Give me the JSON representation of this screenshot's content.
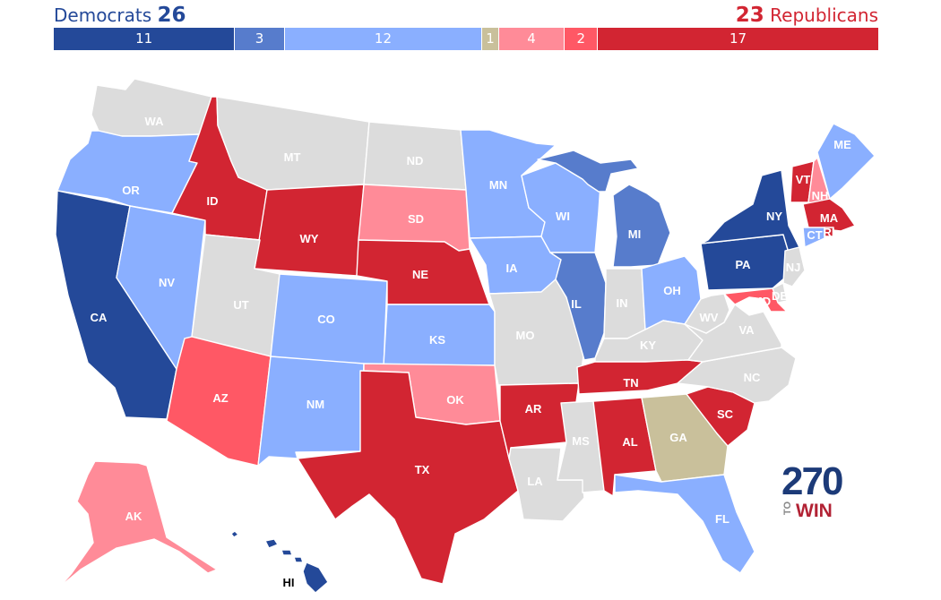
{
  "header": {
    "dem_label": "Democrats",
    "dem_count": "26",
    "rep_count": "23",
    "rep_label": "Republicans"
  },
  "colors": {
    "safe_d": "#244999",
    "likely_d": "#577ccc",
    "leans_d": "#8aafff",
    "tossup": "#c9c09b",
    "leans_r": "#ff8b98",
    "likely_r": "#ff5865",
    "safe_r": "#d22532",
    "no_race": "#dcdcdc"
  },
  "seat_bar": [
    {
      "key": "safe_d",
      "value": "11"
    },
    {
      "key": "likely_d",
      "value": "3"
    },
    {
      "key": "leans_d",
      "value": "12"
    },
    {
      "key": "tossup",
      "value": "1"
    },
    {
      "key": "leans_r",
      "value": "4"
    },
    {
      "key": "likely_r",
      "value": "2"
    },
    {
      "key": "safe_r",
      "value": "17"
    }
  ],
  "states": [
    {
      "abbr": "WA",
      "rating": "no_race"
    },
    {
      "abbr": "OR",
      "rating": "leans_d"
    },
    {
      "abbr": "CA",
      "rating": "safe_d"
    },
    {
      "abbr": "NV",
      "rating": "leans_d"
    },
    {
      "abbr": "ID",
      "rating": "safe_r"
    },
    {
      "abbr": "MT",
      "rating": "no_race"
    },
    {
      "abbr": "WY",
      "rating": "safe_r"
    },
    {
      "abbr": "UT",
      "rating": "no_race"
    },
    {
      "abbr": "AZ",
      "rating": "likely_r"
    },
    {
      "abbr": "CO",
      "rating": "leans_d"
    },
    {
      "abbr": "NM",
      "rating": "leans_d"
    },
    {
      "abbr": "ND",
      "rating": "no_race"
    },
    {
      "abbr": "SD",
      "rating": "leans_r"
    },
    {
      "abbr": "NE",
      "rating": "safe_r"
    },
    {
      "abbr": "KS",
      "rating": "leans_d"
    },
    {
      "abbr": "OK",
      "rating": "leans_r"
    },
    {
      "abbr": "TX",
      "rating": "safe_r"
    },
    {
      "abbr": "MN",
      "rating": "leans_d"
    },
    {
      "abbr": "IA",
      "rating": "leans_d"
    },
    {
      "abbr": "MO",
      "rating": "no_race"
    },
    {
      "abbr": "AR",
      "rating": "safe_r"
    },
    {
      "abbr": "LA",
      "rating": "no_race"
    },
    {
      "abbr": "WI",
      "rating": "leans_d"
    },
    {
      "abbr": "IL",
      "rating": "likely_d"
    },
    {
      "abbr": "MI",
      "rating": "likely_d"
    },
    {
      "abbr": "IN",
      "rating": "no_race"
    },
    {
      "abbr": "OH",
      "rating": "leans_d"
    },
    {
      "abbr": "KY",
      "rating": "no_race"
    },
    {
      "abbr": "TN",
      "rating": "safe_r"
    },
    {
      "abbr": "MS",
      "rating": "no_race"
    },
    {
      "abbr": "AL",
      "rating": "safe_r"
    },
    {
      "abbr": "GA",
      "rating": "tossup"
    },
    {
      "abbr": "FL",
      "rating": "leans_d"
    },
    {
      "abbr": "SC",
      "rating": "safe_r"
    },
    {
      "abbr": "NC",
      "rating": "no_race"
    },
    {
      "abbr": "VA",
      "rating": "no_race"
    },
    {
      "abbr": "WV",
      "rating": "no_race"
    },
    {
      "abbr": "PA",
      "rating": "safe_d"
    },
    {
      "abbr": "NY",
      "rating": "safe_d"
    },
    {
      "abbr": "VT",
      "rating": "safe_r"
    },
    {
      "abbr": "NH",
      "rating": "leans_r"
    },
    {
      "abbr": "ME",
      "rating": "leans_d"
    },
    {
      "abbr": "MA",
      "rating": "safe_r"
    },
    {
      "abbr": "RI",
      "rating": "safe_r"
    },
    {
      "abbr": "CT",
      "rating": "leans_d"
    },
    {
      "abbr": "NJ",
      "rating": "no_race"
    },
    {
      "abbr": "DE",
      "rating": "no_race"
    },
    {
      "abbr": "MD",
      "rating": "likely_r"
    },
    {
      "abbr": "AK",
      "rating": "leans_r"
    },
    {
      "abbr": "HI",
      "rating": "safe_d"
    }
  ],
  "logo": {
    "number": "270",
    "to": "TO",
    "win": "WIN"
  }
}
